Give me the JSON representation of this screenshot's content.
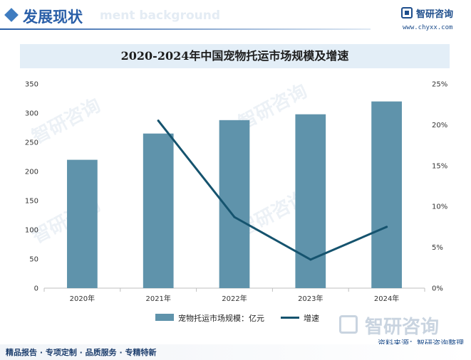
{
  "header": {
    "title": "发展现状",
    "ghost_text": "ment background",
    "logo_name": "智研咨询",
    "logo_url": "www.chyxx.com"
  },
  "chart_data": {
    "type": "bar",
    "title": "2020-2024年中国宠物托运市场规模及增速",
    "categories": [
      "2020年",
      "2021年",
      "2022年",
      "2023年",
      "2024年"
    ],
    "series": [
      {
        "name": "宠物托运市场规模：亿元",
        "type": "bar",
        "axis": "left",
        "values": [
          220,
          265,
          288,
          298,
          320
        ],
        "color": "#5f93ab"
      },
      {
        "name": "增速",
        "type": "line",
        "axis": "right",
        "values": [
          null,
          20.5,
          8.7,
          3.5,
          7.5
        ],
        "color": "#15536e"
      }
    ],
    "left_axis": {
      "min": 0,
      "max": 350,
      "ticks": [
        "0",
        "50",
        "100",
        "150",
        "200",
        "250",
        "300",
        "350"
      ]
    },
    "right_axis": {
      "min": 0,
      "max": 25,
      "ticks": [
        "0%",
        "5%",
        "10%",
        "15%",
        "20%",
        "25%"
      ]
    },
    "grid": false,
    "legend_position": "bottom"
  },
  "watermark_text": "智研咨询",
  "source": "资料来源：智研咨询整理",
  "footer": "精品报告 · 专项定制 · 品质服务 · 专精特新"
}
